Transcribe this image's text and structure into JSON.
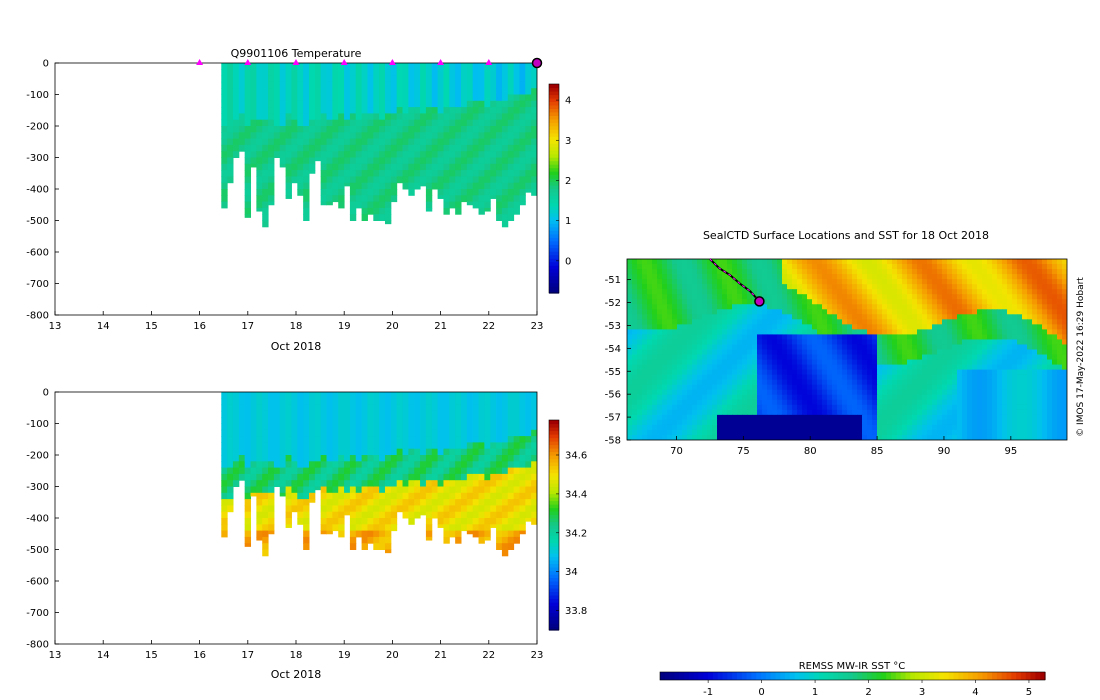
{
  "chart_data": [
    {
      "type": "heatmap",
      "title": "Q9901106  Temperature",
      "xlabel": "Oct 2018",
      "xlim": [
        13,
        23
      ],
      "x_ticks": [
        "13",
        "14",
        "15",
        "16",
        "17",
        "18",
        "19",
        "20",
        "21",
        "22",
        "23"
      ],
      "ylim": [
        -800,
        0
      ],
      "y_ticks": [
        "0",
        "-100",
        "-200",
        "-300",
        "-400",
        "-500",
        "-600",
        "-700",
        "-800"
      ],
      "profile_start_day": 16.45,
      "profile_end_day": 23.0,
      "profile_max_depth": [
        460,
        380,
        300,
        280,
        490,
        330,
        470,
        520,
        450,
        300,
        330,
        430,
        380,
        420,
        500,
        350,
        310,
        450,
        450,
        440,
        460,
        390,
        500,
        460,
        500,
        480,
        500,
        500,
        510,
        440,
        380,
        400,
        420,
        400,
        390,
        470,
        400,
        430,
        480,
        460,
        480,
        440,
        450,
        460,
        480,
        470,
        430,
        500,
        520,
        500,
        480,
        450,
        410,
        420
      ],
      "warm_layer_depth": [
        200,
        200,
        180,
        160,
        190,
        170,
        170,
        180,
        170,
        200,
        190,
        160,
        170,
        200,
        190,
        180,
        170,
        150,
        170,
        180,
        160,
        170,
        150,
        170,
        150,
        160,
        160,
        170,
        160,
        160,
        140,
        150,
        140,
        140,
        150,
        140,
        140,
        160,
        140,
        130,
        140,
        130,
        120,
        120,
        110,
        130,
        120,
        110,
        110,
        100,
        100,
        90,
        100,
        80
      ],
      "surface_markers": [
        16,
        17,
        18,
        19,
        20,
        21,
        22
      ],
      "end_marker": 23.0,
      "colorbar": {
        "min": -0.8,
        "max": 4.4,
        "ticks": [
          "0",
          "1",
          "2",
          "3",
          "4"
        ],
        "tick_values": [
          0,
          1,
          2,
          3,
          4
        ]
      },
      "surface_value": 1.4,
      "deep_value": 2.2,
      "warm_value": 1.8
    },
    {
      "type": "heatmap",
      "title": "",
      "xlabel": "Oct 2018",
      "xlim": [
        13,
        23
      ],
      "x_ticks": [
        "13",
        "14",
        "15",
        "16",
        "17",
        "18",
        "19",
        "20",
        "21",
        "22",
        "23"
      ],
      "ylim": [
        -800,
        0
      ],
      "y_ticks": [
        "0",
        "-100",
        "-200",
        "-300",
        "-400",
        "-500",
        "-600",
        "-700",
        "-800"
      ],
      "profile_start_day": 16.45,
      "profile_end_day": 23.0,
      "colorbar": {
        "min": 33.7,
        "max": 34.78,
        "ticks": [
          "33.8",
          "34",
          "34.2",
          "34.4",
          "34.6"
        ],
        "tick_values": [
          33.8,
          34.0,
          34.2,
          34.4,
          34.6
        ]
      },
      "surface_value": 34.1,
      "mid_value": 34.25,
      "deep_value": 34.5
    },
    {
      "type": "heatmap",
      "title": "SealCTD Surface Locations and SST for 18 Oct 2018",
      "xlabel": "",
      "xlim": [
        66.3,
        99.2
      ],
      "x_ticks": [
        "70",
        "75",
        "80",
        "85",
        "90",
        "95"
      ],
      "x_tick_values": [
        70,
        75,
        80,
        85,
        90,
        95
      ],
      "ylim": [
        -58,
        -50.1
      ],
      "y_ticks": [
        "-51",
        "-52",
        "-53",
        "-54",
        "-55",
        "-56",
        "-57",
        "-58"
      ],
      "y_tick_values": [
        -51,
        -52,
        -53,
        -54,
        -55,
        -56,
        -57,
        -58
      ],
      "track_points": [
        [
          72.5,
          -50.1
        ],
        [
          73.2,
          -50.5
        ],
        [
          74.0,
          -50.8
        ],
        [
          74.8,
          -51.2
        ],
        [
          75.5,
          -51.5
        ],
        [
          76.2,
          -51.95
        ]
      ],
      "current_position": [
        76.2,
        -51.95
      ],
      "colorbar": {
        "label": "REMSS MW-IR SST °C",
        "min": -1.9,
        "max": 5.3,
        "ticks": [
          "-1",
          "0",
          "1",
          "2",
          "3",
          "4",
          "5"
        ],
        "tick_values": [
          -1,
          0,
          1,
          2,
          3,
          4,
          5
        ]
      },
      "credit": "© IMOS 17-May-2022 16:29 Hobart"
    }
  ]
}
